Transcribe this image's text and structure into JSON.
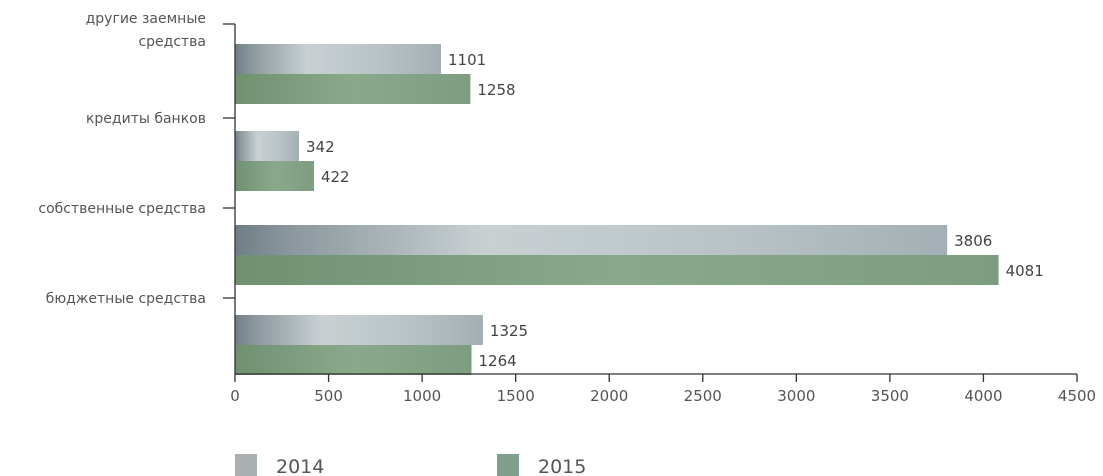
{
  "chart_data": {
    "type": "bar",
    "orientation": "horizontal",
    "title": "",
    "xlabel": "",
    "ylabel": "",
    "categories": [
      "другие заемные средства",
      "кредиты банков",
      "собственные средства",
      "бюджетные средства"
    ],
    "category_lines": [
      [
        "другие заемные",
        "средства"
      ],
      [
        "кредиты банков"
      ],
      [
        "собственные средства"
      ],
      [
        "бюджетные средства"
      ]
    ],
    "series": [
      {
        "name": "2014",
        "values": [
          1101,
          342,
          3806,
          1325
        ],
        "color": "#aab4b8"
      },
      {
        "name": "2015",
        "values": [
          1258,
          422,
          4081,
          1264
        ],
        "color": "#83a386"
      }
    ],
    "xlim": [
      0,
      4500
    ],
    "x_ticks": [
      0,
      500,
      1000,
      1500,
      2000,
      2500,
      3000,
      3500,
      4000,
      4500
    ],
    "grid": false,
    "legend_position": "bottom"
  },
  "colors": {
    "axis": "#333333",
    "series_2014_dark": "#6f7e86",
    "series_2015_dark": "#6f9170"
  }
}
